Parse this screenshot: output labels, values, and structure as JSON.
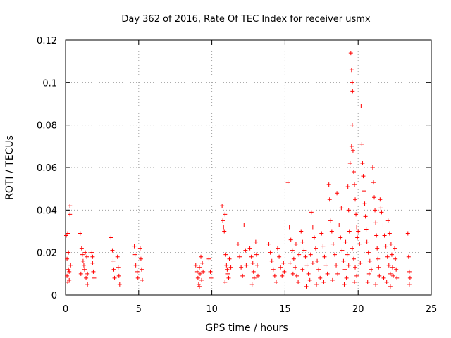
{
  "chart_data": {
    "type": "scatter",
    "title": "Day 362 of 2016, Rate Of TEC Index for receiver usmx",
    "xlabel": "GPS time / hours",
    "ylabel": "ROTI / TECUs",
    "xlim": [
      0,
      25
    ],
    "ylim": [
      0,
      0.12
    ],
    "x_ticks": [
      0,
      5,
      10,
      15,
      20,
      25
    ],
    "x_tick_labels": [
      "0",
      "5",
      "10",
      "15",
      "20",
      "25"
    ],
    "y_ticks": [
      0,
      0.02,
      0.04,
      0.06,
      0.08,
      0.1,
      0.12
    ],
    "y_tick_labels": [
      "0",
      "0.02",
      "0.04",
      "0.06",
      "0.08",
      "0.1",
      "0.12"
    ],
    "grid": true,
    "marker": "plus",
    "marker_color": "#ff0000",
    "series": [
      {
        "name": "ROTI",
        "points": [
          [
            0.05,
            0.028
          ],
          [
            0.1,
            0.009
          ],
          [
            0.15,
            0.029
          ],
          [
            0.2,
            0.012
          ],
          [
            0.25,
            0.007
          ],
          [
            0.3,
            0.042
          ],
          [
            0.3,
            0.038
          ],
          [
            0.35,
            0.014
          ],
          [
            0.2,
            0.02
          ],
          [
            0.1,
            0.017
          ],
          [
            0.25,
            0.011
          ],
          [
            0.15,
            0.006
          ],
          [
            1.0,
            0.029
          ],
          [
            1.1,
            0.022
          ],
          [
            1.2,
            0.016
          ],
          [
            1.3,
            0.012
          ],
          [
            1.4,
            0.008
          ],
          [
            1.5,
            0.005
          ],
          [
            1.15,
            0.019
          ],
          [
            1.25,
            0.014
          ],
          [
            1.45,
            0.018
          ],
          [
            1.05,
            0.01
          ],
          [
            1.35,
            0.02
          ],
          [
            1.5,
            0.01
          ],
          [
            1.8,
            0.02
          ],
          [
            1.85,
            0.015
          ],
          [
            1.9,
            0.011
          ],
          [
            1.95,
            0.008
          ],
          [
            1.85,
            0.018
          ],
          [
            3.1,
            0.027
          ],
          [
            3.2,
            0.021
          ],
          [
            3.25,
            0.016
          ],
          [
            3.3,
            0.012
          ],
          [
            3.35,
            0.008
          ],
          [
            3.55,
            0.018
          ],
          [
            3.6,
            0.013
          ],
          [
            3.65,
            0.009
          ],
          [
            3.7,
            0.005
          ],
          [
            4.7,
            0.023
          ],
          [
            4.75,
            0.019
          ],
          [
            4.8,
            0.014
          ],
          [
            4.9,
            0.011
          ],
          [
            4.95,
            0.008
          ],
          [
            5.1,
            0.022
          ],
          [
            5.15,
            0.017
          ],
          [
            5.2,
            0.012
          ],
          [
            5.25,
            0.007
          ],
          [
            8.9,
            0.014
          ],
          [
            9.0,
            0.011
          ],
          [
            9.05,
            0.008
          ],
          [
            9.1,
            0.005
          ],
          [
            9.15,
            0.013
          ],
          [
            9.2,
            0.01
          ],
          [
            9.25,
            0.018
          ],
          [
            9.3,
            0.007
          ],
          [
            9.35,
            0.015
          ],
          [
            9.4,
            0.011
          ],
          [
            9.15,
            0.004
          ],
          [
            9.8,
            0.017
          ],
          [
            9.9,
            0.011
          ],
          [
            9.95,
            0.008
          ],
          [
            10.7,
            0.042
          ],
          [
            10.75,
            0.035
          ],
          [
            10.8,
            0.032
          ],
          [
            10.85,
            0.03
          ],
          [
            10.9,
            0.038
          ],
          [
            10.95,
            0.019
          ],
          [
            11.0,
            0.014
          ],
          [
            11.05,
            0.012
          ],
          [
            11.1,
            0.01
          ],
          [
            11.15,
            0.008
          ],
          [
            11.2,
            0.017
          ],
          [
            11.3,
            0.013
          ],
          [
            10.9,
            0.006
          ],
          [
            11.8,
            0.024
          ],
          [
            11.9,
            0.018
          ],
          [
            12.0,
            0.013
          ],
          [
            12.1,
            0.009
          ],
          [
            12.2,
            0.033
          ],
          [
            12.3,
            0.021
          ],
          [
            12.35,
            0.014
          ],
          [
            12.6,
            0.022
          ],
          [
            12.7,
            0.018
          ],
          [
            12.8,
            0.015
          ],
          [
            12.85,
            0.011
          ],
          [
            12.9,
            0.008
          ],
          [
            13.0,
            0.025
          ],
          [
            13.05,
            0.019
          ],
          [
            13.1,
            0.014
          ],
          [
            13.15,
            0.009
          ],
          [
            12.75,
            0.005
          ],
          [
            13.9,
            0.024
          ],
          [
            14.0,
            0.02
          ],
          [
            14.1,
            0.016
          ],
          [
            14.2,
            0.012
          ],
          [
            14.3,
            0.009
          ],
          [
            14.4,
            0.006
          ],
          [
            14.5,
            0.022
          ],
          [
            14.6,
            0.018
          ],
          [
            14.7,
            0.013
          ],
          [
            14.8,
            0.009
          ],
          [
            14.9,
            0.015
          ],
          [
            14.95,
            0.011
          ],
          [
            15.2,
            0.053
          ],
          [
            15.3,
            0.032
          ],
          [
            15.4,
            0.026
          ],
          [
            15.5,
            0.021
          ],
          [
            15.6,
            0.017
          ],
          [
            15.7,
            0.013
          ],
          [
            15.8,
            0.009
          ],
          [
            15.9,
            0.006
          ],
          [
            15.35,
            0.015
          ],
          [
            15.55,
            0.01
          ],
          [
            15.75,
            0.024
          ],
          [
            15.95,
            0.019
          ],
          [
            16.1,
            0.03
          ],
          [
            16.2,
            0.025
          ],
          [
            16.3,
            0.021
          ],
          [
            16.4,
            0.018
          ],
          [
            16.5,
            0.014
          ],
          [
            16.6,
            0.01
          ],
          [
            16.7,
            0.007
          ],
          [
            16.8,
            0.039
          ],
          [
            16.9,
            0.032
          ],
          [
            17.0,
            0.027
          ],
          [
            17.1,
            0.022
          ],
          [
            17.2,
            0.016
          ],
          [
            17.3,
            0.012
          ],
          [
            17.4,
            0.008
          ],
          [
            16.45,
            0.004
          ],
          [
            16.75,
            0.019
          ],
          [
            17.15,
            0.005
          ],
          [
            16.2,
            0.012
          ],
          [
            16.9,
            0.015
          ],
          [
            17.5,
            0.029
          ],
          [
            17.6,
            0.023
          ],
          [
            17.7,
            0.018
          ],
          [
            17.8,
            0.014
          ],
          [
            17.9,
            0.01
          ],
          [
            18.0,
            0.052
          ],
          [
            18.05,
            0.045
          ],
          [
            18.1,
            0.035
          ],
          [
            18.2,
            0.03
          ],
          [
            18.3,
            0.024
          ],
          [
            18.4,
            0.019
          ],
          [
            18.5,
            0.014
          ],
          [
            18.6,
            0.01
          ],
          [
            17.65,
            0.006
          ],
          [
            18.25,
            0.007
          ],
          [
            18.55,
            0.048
          ],
          [
            18.7,
            0.033
          ],
          [
            18.8,
            0.027
          ],
          [
            18.9,
            0.021
          ],
          [
            19.0,
            0.016
          ],
          [
            19.1,
            0.012
          ],
          [
            19.2,
            0.008
          ],
          [
            19.3,
            0.051
          ],
          [
            19.35,
            0.04
          ],
          [
            19.4,
            0.03
          ],
          [
            19.45,
            0.062
          ],
          [
            18.85,
            0.041
          ],
          [
            19.15,
            0.025
          ],
          [
            19.25,
            0.019
          ],
          [
            19.35,
            0.014
          ],
          [
            19.05,
            0.005
          ],
          [
            19.5,
            0.114
          ],
          [
            19.55,
            0.106
          ],
          [
            19.6,
            0.1
          ],
          [
            19.62,
            0.096
          ],
          [
            19.6,
            0.08
          ],
          [
            19.55,
            0.07
          ],
          [
            19.65,
            0.068
          ],
          [
            19.7,
            0.058
          ],
          [
            19.75,
            0.052
          ],
          [
            19.8,
            0.045
          ],
          [
            19.85,
            0.038
          ],
          [
            19.9,
            0.032
          ],
          [
            19.95,
            0.027
          ],
          [
            19.6,
            0.022
          ],
          [
            19.7,
            0.017
          ],
          [
            19.8,
            0.013
          ],
          [
            19.9,
            0.009
          ],
          [
            19.75,
            0.006
          ],
          [
            20.0,
            0.03
          ],
          [
            20.1,
            0.024
          ],
          [
            20.2,
            0.089
          ],
          [
            20.25,
            0.071
          ],
          [
            20.3,
            0.062
          ],
          [
            20.35,
            0.056
          ],
          [
            20.4,
            0.049
          ],
          [
            20.45,
            0.043
          ],
          [
            20.5,
            0.037
          ],
          [
            20.55,
            0.031
          ],
          [
            20.6,
            0.025
          ],
          [
            20.7,
            0.02
          ],
          [
            20.8,
            0.016
          ],
          [
            20.9,
            0.012
          ],
          [
            21.0,
            0.06
          ],
          [
            21.05,
            0.053
          ],
          [
            21.1,
            0.046
          ],
          [
            21.15,
            0.04
          ],
          [
            21.2,
            0.034
          ],
          [
            21.25,
            0.028
          ],
          [
            21.3,
            0.022
          ],
          [
            21.35,
            0.017
          ],
          [
            21.4,
            0.013
          ],
          [
            21.45,
            0.009
          ],
          [
            20.65,
            0.006
          ],
          [
            21.2,
            0.005
          ],
          [
            20.15,
            0.015
          ],
          [
            20.75,
            0.01
          ],
          [
            21.5,
            0.045
          ],
          [
            21.6,
            0.039
          ],
          [
            21.7,
            0.033
          ],
          [
            21.8,
            0.028
          ],
          [
            21.9,
            0.023
          ],
          [
            22.0,
            0.018
          ],
          [
            22.1,
            0.014
          ],
          [
            22.2,
            0.01
          ],
          [
            21.55,
            0.041
          ],
          [
            21.75,
            0.008
          ],
          [
            22.05,
            0.035
          ],
          [
            22.15,
            0.029
          ],
          [
            22.25,
            0.024
          ],
          [
            22.3,
            0.019
          ],
          [
            22.35,
            0.013
          ],
          [
            22.4,
            0.009
          ],
          [
            21.95,
            0.006
          ],
          [
            22.2,
            0.004
          ],
          [
            22.5,
            0.022
          ],
          [
            22.55,
            0.017
          ],
          [
            22.6,
            0.012
          ],
          [
            22.65,
            0.008
          ],
          [
            23.4,
            0.029
          ],
          [
            23.45,
            0.018
          ],
          [
            23.5,
            0.011
          ],
          [
            23.55,
            0.008
          ],
          [
            23.5,
            0.005
          ]
        ]
      }
    ]
  }
}
